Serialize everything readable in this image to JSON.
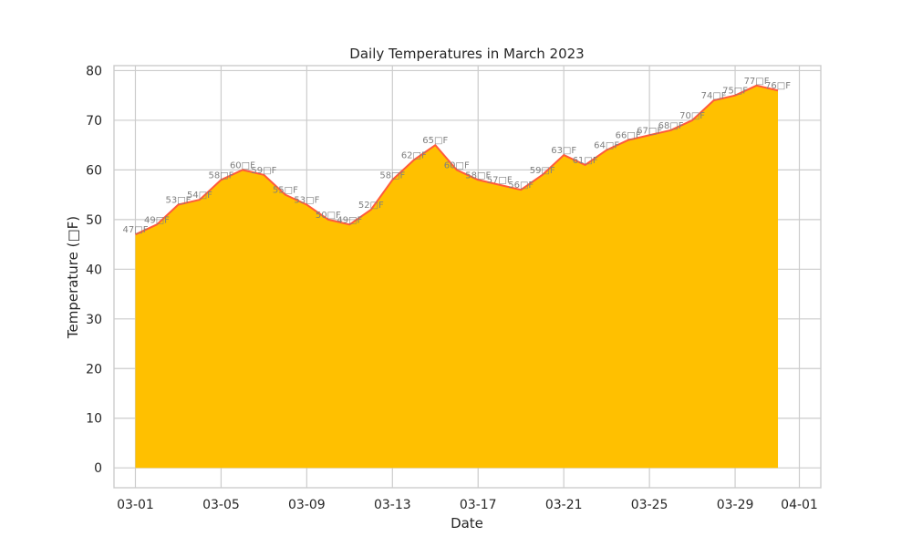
{
  "chart_data": {
    "type": "area",
    "title": "Daily Temperatures in March 2023",
    "xlabel": "Date",
    "ylabel": "Temperature (□F)",
    "unit_suffix": "□F",
    "x": [
      "2023-03-01",
      "2023-03-02",
      "2023-03-03",
      "2023-03-04",
      "2023-03-05",
      "2023-03-06",
      "2023-03-07",
      "2023-03-08",
      "2023-03-09",
      "2023-03-10",
      "2023-03-11",
      "2023-03-12",
      "2023-03-13",
      "2023-03-14",
      "2023-03-15",
      "2023-03-16",
      "2023-03-17",
      "2023-03-18",
      "2023-03-19",
      "2023-03-20",
      "2023-03-21",
      "2023-03-22",
      "2023-03-23",
      "2023-03-24",
      "2023-03-25",
      "2023-03-26",
      "2023-03-27",
      "2023-03-28",
      "2023-03-29",
      "2023-03-30",
      "2023-03-31"
    ],
    "values": [
      47,
      49,
      53,
      54,
      58,
      60,
      59,
      55,
      53,
      50,
      49,
      52,
      58,
      62,
      65,
      60,
      58,
      57,
      56,
      59,
      63,
      61,
      64,
      66,
      67,
      68,
      70,
      74,
      75,
      77,
      76
    ],
    "xlim": [
      "2023-02-28",
      "2023-04-02"
    ],
    "ylim": [
      -4,
      81
    ],
    "x_ticks": [
      {
        "date": "2023-03-01",
        "label": "03-01"
      },
      {
        "date": "2023-03-05",
        "label": "03-05"
      },
      {
        "date": "2023-03-09",
        "label": "03-09"
      },
      {
        "date": "2023-03-13",
        "label": "03-13"
      },
      {
        "date": "2023-03-17",
        "label": "03-17"
      },
      {
        "date": "2023-03-21",
        "label": "03-21"
      },
      {
        "date": "2023-03-25",
        "label": "03-25"
      },
      {
        "date": "2023-03-29",
        "label": "03-29"
      },
      {
        "date": "2023-04-01",
        "label": "04-01"
      }
    ],
    "y_ticks": [
      0,
      10,
      20,
      30,
      40,
      50,
      60,
      70,
      80
    ],
    "grid": true,
    "colors": {
      "fill": "#ffc000",
      "line": "#ff5a3c"
    }
  }
}
